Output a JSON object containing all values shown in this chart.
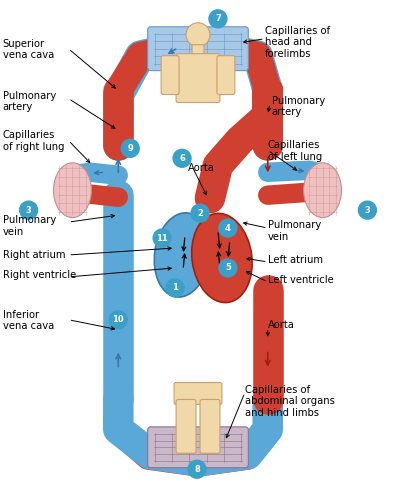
{
  "bg_color": "#ffffff",
  "blue_color": "#5aa8d8",
  "red_color": "#d04030",
  "dark_blue": "#3878a8",
  "dark_red": "#a02010",
  "circle_color": "#3aA0c8",
  "lung_color": "#f0c0c0",
  "lung_outline": "#c09090",
  "body_color": "#f0d8a8",
  "body_outline": "#c8a070",
  "capillary_top_color": "#a8c8e8",
  "capillary_top_outline": "#6898c8",
  "capillary_bottom_color": "#c8a8a8",
  "capillary_bottom_outline": "#906060",
  "labels": {
    "superior_vena_cava": "Superior\nvena cava",
    "pulmonary_artery_left": "Pulmonary\nartery",
    "capillaries_right_lung": "Capillaries\nof right lung",
    "pulmonary_vein_left": "Pulmonary\nvein",
    "right_atrium": "Right atrium",
    "right_ventricle": "Right ventricle",
    "inferior_vena_cava": "Inferior\nvena cava",
    "capillaries_head": "Capillaries of\nhead and\nforelimbs",
    "pulmonary_artery_right": "Pulmonary\nartery",
    "capillaries_left_lung": "Capillaries\nof left lung",
    "pulmonary_vein_right": "Pulmonary\nvein",
    "left_atrium": "Left atrium",
    "left_ventricle": "Left ventricle",
    "aorta_right": "Aorta",
    "aorta_center": "Aorta",
    "capillaries_abdomen": "Capillaries of\nabdominal organs\nand hind limbs"
  }
}
